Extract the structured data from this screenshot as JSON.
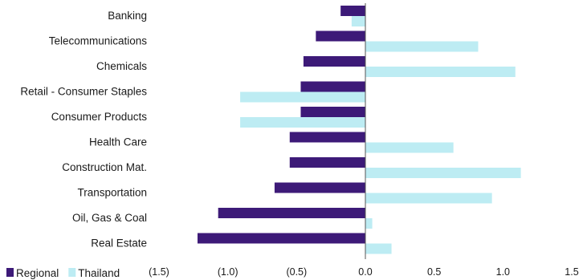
{
  "chart_data": {
    "type": "bar",
    "orientation": "horizontal",
    "categories": [
      "Banking",
      "Telecommunications",
      "Chemicals",
      "Retail - Consumer Staples",
      "Consumer Products",
      "Health Care",
      "Construction Mat.",
      "Transportation",
      "Oil, Gas & Coal",
      "Real Estate"
    ],
    "series": [
      {
        "name": "Regional",
        "color": "#3d1a78",
        "values": [
          -0.18,
          -0.36,
          -0.45,
          -0.47,
          -0.47,
          -0.55,
          -0.55,
          -0.66,
          -1.07,
          -1.22
        ]
      },
      {
        "name": "Thailand",
        "color": "#bdecf3",
        "values": [
          -0.1,
          0.82,
          1.09,
          -0.91,
          -0.91,
          0.64,
          1.13,
          0.92,
          0.05,
          0.19
        ]
      }
    ],
    "xlim": [
      -1.5,
      1.5
    ],
    "xticks": [
      -1.5,
      -1.0,
      -0.5,
      0.0,
      0.5,
      1.0,
      1.5
    ],
    "xtick_labels": [
      "(1.5)",
      "(1.0)",
      "(0.5)",
      "0.0",
      "0.5",
      "1.0",
      "1.5"
    ],
    "legend_position": "bottom-left",
    "grid": false
  }
}
